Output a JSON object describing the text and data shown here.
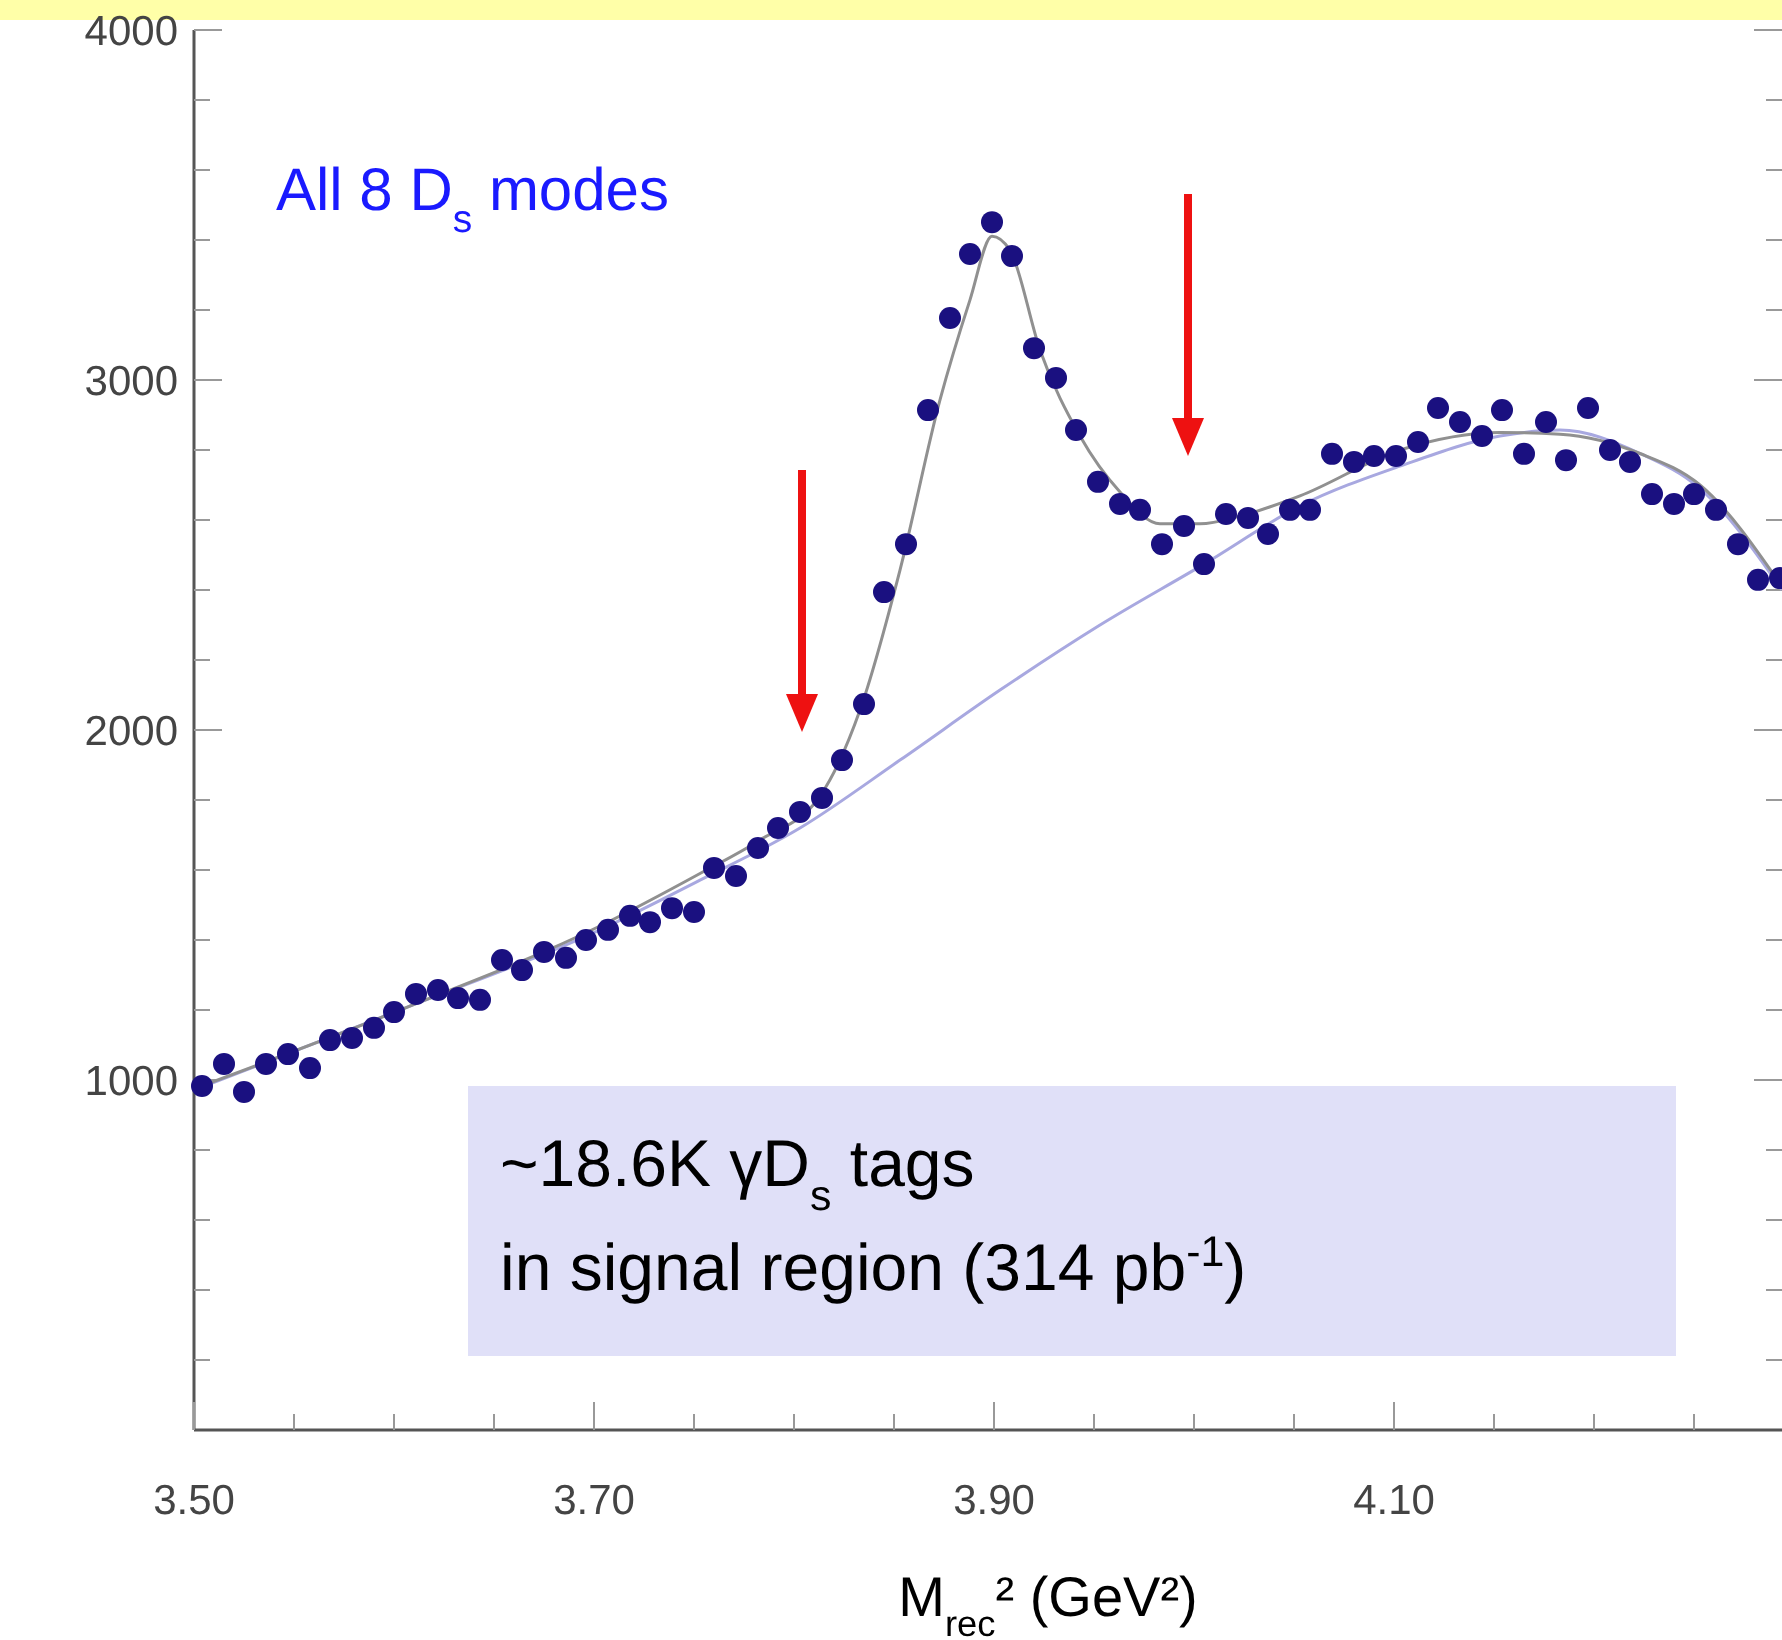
{
  "chart_data": {
    "type": "scatter",
    "xlabel": "M$_{rec}$² (GeV²)",
    "xlim": [
      3.5,
      4.294
    ],
    "ylim": [
      0,
      4000
    ],
    "xticks": [
      {
        "value": 3.5,
        "label": "3.50"
      },
      {
        "value": 3.55,
        "label": null
      },
      {
        "value": 3.6,
        "label": null
      },
      {
        "value": 3.65,
        "label": null
      },
      {
        "value": 3.7,
        "label": "3.70"
      },
      {
        "value": 3.75,
        "label": null
      },
      {
        "value": 3.8,
        "label": null
      },
      {
        "value": 3.85,
        "label": null
      },
      {
        "value": 3.9,
        "label": "3.90"
      },
      {
        "value": 3.95,
        "label": null
      },
      {
        "value": 4.0,
        "label": null
      },
      {
        "value": 4.05,
        "label": null
      },
      {
        "value": 4.1,
        "label": "4.10"
      },
      {
        "value": 4.15,
        "label": null
      },
      {
        "value": 4.2,
        "label": null
      },
      {
        "value": 4.25,
        "label": null
      }
    ],
    "yticks": [
      {
        "value": 200,
        "label": null
      },
      {
        "value": 400,
        "label": null
      },
      {
        "value": 600,
        "label": null
      },
      {
        "value": 800,
        "label": null
      },
      1000,
      {
        "value": 1200,
        "label": null
      },
      {
        "value": 1400,
        "label": null
      },
      {
        "value": 1600,
        "label": null
      },
      {
        "value": 1800,
        "label": null
      },
      2000,
      {
        "value": 2200,
        "label": null
      },
      {
        "value": 2400,
        "label": null
      },
      {
        "value": 2600,
        "label": null
      },
      {
        "value": 2800,
        "label": null
      },
      3000,
      {
        "value": 3200,
        "label": null
      },
      {
        "value": 3400,
        "label": null
      },
      {
        "value": 3600,
        "label": null
      },
      {
        "value": 3800,
        "label": null
      },
      4000
    ],
    "grid": false,
    "annotations": [
      "All 8 D$_{s}$ modes",
      "~18.6K γD$_{s}$ tags\nin signal region (314 pb$^{-1}$)"
    ],
    "series": [
      {
        "type": "line",
        "color": "#a8a8e0",
        "x": [
          3.5,
          3.603,
          3.703,
          3.753,
          3.803,
          3.853,
          3.903,
          3.953,
          4.005,
          4.053,
          4.103,
          4.153,
          4.183,
          4.223,
          4.253,
          4.294
        ],
        "values": [
          971,
          1200,
          1429,
          1571,
          1720,
          1914,
          2114,
          2300,
          2474,
          2640,
          2754,
          2840,
          2857,
          2790,
          2690,
          2400
        ]
      },
      {
        "type": "line",
        "color": "#909090",
        "x": [
          3.5,
          3.603,
          3.703,
          3.753,
          3.783,
          3.813,
          3.833,
          3.853,
          3.873,
          3.888,
          3.899,
          3.908,
          3.923,
          3.943,
          3.963,
          3.983,
          4.003,
          4.023,
          4.053,
          4.103,
          4.153,
          4.183,
          4.223,
          4.253,
          4.294
        ],
        "values": [
          975,
          1200,
          1440,
          1590,
          1686,
          1811,
          2057,
          2457,
          2943,
          3229,
          3411,
          3371,
          3086,
          2840,
          2680,
          2589,
          2589,
          2611,
          2669,
          2800,
          2850,
          2845,
          2790,
          2700,
          2410
        ]
      },
      {
        "type": "scatter",
        "marker": "circle",
        "color": "#1a1080",
        "x": [
          3.504,
          3.515,
          3.525,
          3.536,
          3.547,
          3.558,
          3.568,
          3.579,
          3.59,
          3.6,
          3.611,
          3.622,
          3.632,
          3.643,
          3.654,
          3.664,
          3.675,
          3.686,
          3.696,
          3.707,
          3.718,
          3.728,
          3.739,
          3.75,
          3.76,
          3.771,
          3.782,
          3.792,
          3.803,
          3.814,
          3.824,
          3.835,
          3.845,
          3.856,
          3.867,
          3.878,
          3.888,
          3.899,
          3.909,
          3.92,
          3.931,
          3.941,
          3.952,
          3.963,
          3.973,
          3.984,
          3.995,
          4.005,
          4.016,
          4.027,
          4.037,
          4.048,
          4.058,
          4.069,
          4.08,
          4.09,
          4.101,
          4.112,
          4.122,
          4.133,
          4.144,
          4.154,
          4.165,
          4.176,
          4.186,
          4.197,
          4.208,
          4.218,
          4.229,
          4.24,
          4.25,
          4.261,
          4.272,
          4.282,
          4.293
        ],
        "values": [
          983,
          1046,
          966,
          1046,
          1074,
          1034,
          1114,
          1120,
          1149,
          1194,
          1246,
          1257,
          1234,
          1229,
          1343,
          1314,
          1366,
          1349,
          1400,
          1429,
          1469,
          1451,
          1491,
          1480,
          1606,
          1583,
          1663,
          1720,
          1766,
          1806,
          1914,
          2074,
          2394,
          2531,
          2914,
          3177,
          3360,
          3451,
          3354,
          3091,
          3006,
          2857,
          2709,
          2646,
          2629,
          2531,
          2583,
          2474,
          2617,
          2606,
          2560,
          2629,
          2629,
          2789,
          2766,
          2783,
          2783,
          2823,
          2920,
          2880,
          2840,
          2914,
          2789,
          2880,
          2771,
          2920,
          2800,
          2766,
          2674,
          2646,
          2674,
          2629,
          2531,
          2429,
          2434
        ]
      }
    ]
  }
}
